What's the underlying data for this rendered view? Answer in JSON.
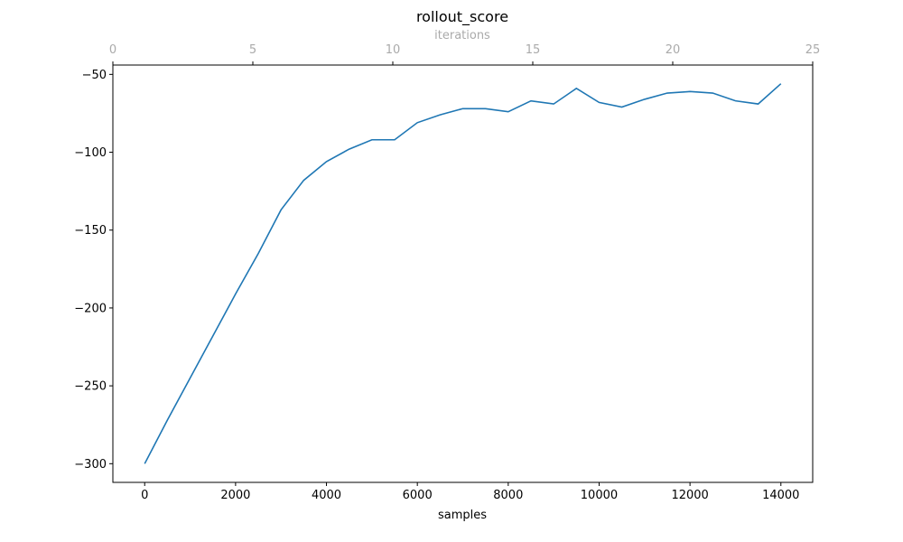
{
  "chart_data": {
    "type": "line",
    "title": "rollout_score",
    "xlabel": "samples",
    "x2label": "iterations",
    "ylabel": "",
    "xlim": [
      -700,
      14700
    ],
    "ylim": [
      -312,
      -44
    ],
    "x2lim": [
      0,
      25
    ],
    "xticks": [
      0,
      2000,
      4000,
      6000,
      8000,
      10000,
      12000,
      14000
    ],
    "xtick_labels": [
      "0",
      "2000",
      "4000",
      "6000",
      "8000",
      "10000",
      "12000",
      "14000"
    ],
    "x2ticks": [
      0,
      5,
      10,
      15,
      20,
      25
    ],
    "x2tick_labels": [
      "0",
      "5",
      "10",
      "15",
      "20",
      "25"
    ],
    "yticks": [
      -300,
      -250,
      -200,
      -150,
      -100,
      -50
    ],
    "ytick_labels": [
      "−300",
      "−250",
      "−200",
      "−150",
      "−100",
      "−50"
    ],
    "grid": false,
    "line_color": "#1f77b4",
    "top_axis_color": "#aaaaaa",
    "series": [
      {
        "x": [
          0,
          500,
          1000,
          1500,
          2000,
          2500,
          3000,
          3500,
          4000,
          4500,
          5000,
          5500,
          6000,
          6500,
          7000,
          7500,
          8000,
          8500,
          9000,
          9500,
          10000,
          10500,
          11000,
          11500,
          12000,
          12500,
          13000,
          13500,
          14000
        ],
        "y": [
          -300,
          -272,
          -245,
          -218,
          -191,
          -165,
          -137,
          -118,
          -106,
          -98,
          -92,
          -92,
          -81,
          -76,
          -72,
          -72,
          -74,
          -67,
          -69,
          -59,
          -68,
          -71,
          -66,
          -62,
          -61,
          -62,
          -67,
          -69,
          -56
        ]
      }
    ]
  }
}
